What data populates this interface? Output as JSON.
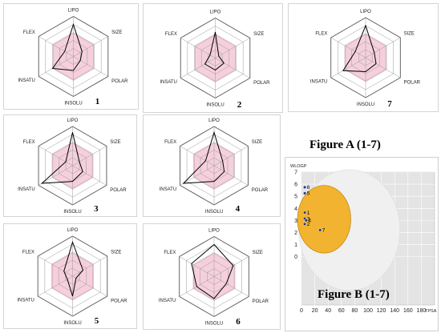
{
  "figure_a_label": "Figure A (1-7)",
  "figure_b_label": "Figure B (1-7)",
  "colors": {
    "optimal_zone": "#f5d0dc",
    "profile_line": "#000000",
    "hia_region": "#f0f0f0",
    "bbb_region": "#f2b430"
  },
  "chart_data": [
    {
      "type": "radar",
      "id": "1",
      "number": "1",
      "axes": [
        "LIPO",
        "SIZE",
        "POLAR",
        "INSOLU",
        "INSATU",
        "FLEX"
      ],
      "values": [
        0.8,
        0.25,
        0.2,
        0.35,
        0.6,
        0.25
      ]
    },
    {
      "type": "radar",
      "id": "2",
      "number": "2",
      "axes": [
        "LIPO",
        "SIZE",
        "POLAR",
        "INSOLU",
        "INSATU",
        "FLEX"
      ],
      "values": [
        0.65,
        0.1,
        0.25,
        0.3,
        0.3,
        0.15
      ]
    },
    {
      "type": "radar",
      "id": "7",
      "number": "7",
      "axes": [
        "LIPO",
        "SIZE",
        "POLAR",
        "INSOLU",
        "INSATU",
        "FLEX"
      ],
      "values": [
        0.8,
        0.25,
        0.3,
        0.35,
        0.65,
        0.3
      ]
    },
    {
      "type": "radar",
      "id": "3",
      "number": "3",
      "axes": [
        "LIPO",
        "SIZE",
        "POLAR",
        "INSOLU",
        "INSATU",
        "FLEX"
      ],
      "values": [
        0.85,
        0.2,
        0.3,
        0.4,
        0.9,
        0.2
      ]
    },
    {
      "type": "radar",
      "id": "4",
      "number": "4",
      "axes": [
        "LIPO",
        "SIZE",
        "POLAR",
        "INSOLU",
        "INSATU",
        "FLEX"
      ],
      "values": [
        0.85,
        0.25,
        0.3,
        0.4,
        0.9,
        0.25
      ]
    },
    {
      "type": "radar",
      "id": "5",
      "number": "5",
      "axes": [
        "LIPO",
        "SIZE",
        "POLAR",
        "INSOLU",
        "INSATU",
        "FLEX"
      ],
      "values": [
        0.85,
        0.3,
        0.1,
        0.5,
        0.15,
        0.25
      ]
    },
    {
      "type": "radar",
      "id": "6",
      "number": "6",
      "axes": [
        "LIPO",
        "SIZE",
        "POLAR",
        "INSOLU",
        "INSATU",
        "FLEX"
      ],
      "values": [
        0.8,
        0.55,
        0.35,
        0.55,
        0.5,
        0.65
      ]
    },
    {
      "type": "scatter",
      "id": "boiled-egg",
      "xlabel": "TPSA",
      "ylabel": "WLOGP",
      "xlim": [
        0,
        200
      ],
      "ylim": [
        -4,
        7
      ],
      "xticks": [
        0,
        20,
        40,
        60,
        80,
        100,
        120,
        140,
        160,
        180
      ],
      "yticks": [
        7,
        6,
        5,
        4,
        3,
        2,
        1,
        0
      ],
      "points": [
        {
          "label": "1",
          "x": 5,
          "y": 3.65
        },
        {
          "label": "2",
          "x": 5,
          "y": 2.7
        },
        {
          "label": "3",
          "x": 5,
          "y": 3.15
        },
        {
          "label": "4",
          "x": 7,
          "y": 3.0
        },
        {
          "label": "5",
          "x": 5,
          "y": 5.25
        },
        {
          "label": "6",
          "x": 5,
          "y": 5.75
        },
        {
          "label": "7",
          "x": 28,
          "y": 2.2
        }
      ]
    }
  ]
}
